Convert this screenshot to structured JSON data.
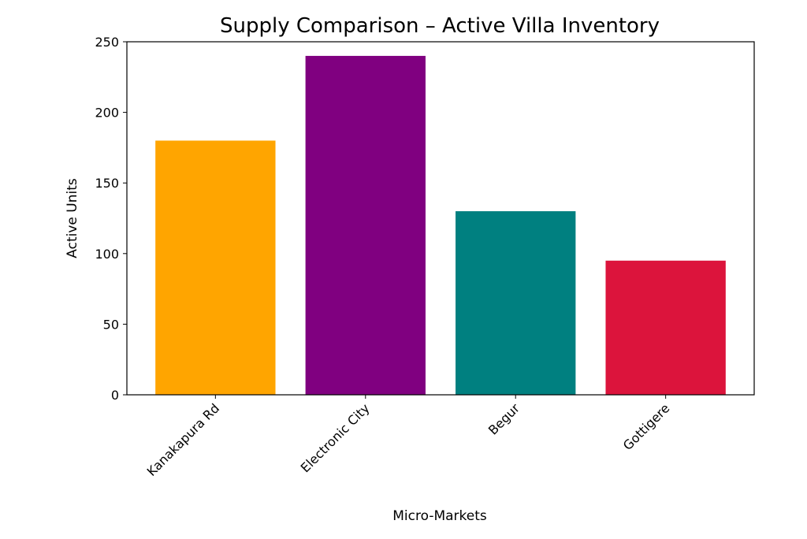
{
  "chart_data": {
    "type": "bar",
    "title": "Supply Comparison – Active Villa Inventory",
    "xlabel": "Micro-Markets",
    "ylabel": "Active Units",
    "categories": [
      "Kanakapura Rd",
      "Electronic City",
      "Begur",
      "Gottigere"
    ],
    "values": [
      180,
      240,
      130,
      95
    ],
    "colors": [
      "#FFA500",
      "#800080",
      "#008080",
      "#DC143C"
    ],
    "ylim": [
      0,
      250
    ],
    "yticks": [
      0,
      50,
      100,
      150,
      200,
      250
    ],
    "grid": false,
    "legend": "none"
  }
}
